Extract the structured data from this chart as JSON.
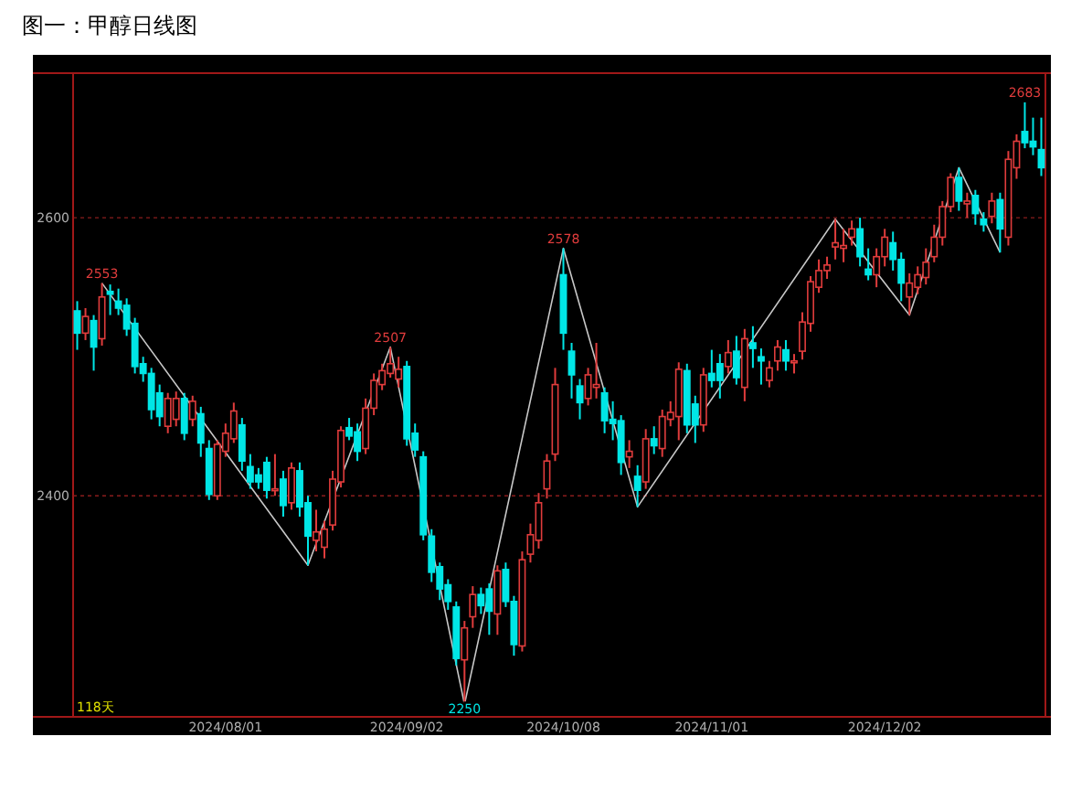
{
  "chart_data": {
    "type": "candlestick",
    "title": "图一：甲醇日线图",
    "categories": [
      null,
      null,
      null,
      null,
      null,
      null,
      null,
      null,
      null,
      null,
      null,
      null,
      null,
      null,
      null,
      null,
      null,
      null,
      "2024/08/01",
      null,
      null,
      null,
      null,
      null,
      null,
      null,
      null,
      null,
      null,
      null,
      null,
      null,
      null,
      null,
      null,
      null,
      null,
      null,
      null,
      null,
      "2024/09/02",
      null,
      null,
      null,
      null,
      null,
      null,
      null,
      null,
      null,
      null,
      null,
      null,
      null,
      null,
      null,
      null,
      null,
      null,
      "2024/10/08",
      null,
      null,
      null,
      null,
      null,
      null,
      null,
      null,
      null,
      null,
      null,
      null,
      null,
      null,
      null,
      null,
      null,
      "2024/11/01",
      null,
      null,
      null,
      null,
      null,
      null,
      null,
      null,
      null,
      null,
      null,
      null,
      null,
      null,
      null,
      null,
      null,
      null,
      null,
      null,
      "2024/12/02",
      null,
      null,
      null,
      null,
      null,
      null,
      null,
      null,
      null,
      null,
      null,
      null,
      null,
      null,
      null,
      null,
      null,
      null,
      null
    ],
    "ohlc": [
      [
        2533,
        2540,
        2505,
        2517
      ],
      [
        2517,
        2535,
        2512,
        2529
      ],
      [
        2526,
        2530,
        2490,
        2507
      ],
      [
        2513,
        2553,
        2508,
        2543
      ],
      [
        2547,
        2552,
        2530,
        2545
      ],
      [
        2540,
        2549,
        2530,
        2535
      ],
      [
        2537,
        2542,
        2515,
        2520
      ],
      [
        2524,
        2528,
        2488,
        2493
      ],
      [
        2495,
        2500,
        2482,
        2488
      ],
      [
        2488,
        2492,
        2455,
        2462
      ],
      [
        2474,
        2480,
        2450,
        2457
      ],
      [
        2450,
        2474,
        2445,
        2470
      ],
      [
        2455,
        2475,
        2450,
        2470
      ],
      [
        2470,
        2474,
        2440,
        2445
      ],
      [
        2455,
        2472,
        2450,
        2468
      ],
      [
        2459,
        2464,
        2428,
        2438
      ],
      [
        2434,
        2440,
        2397,
        2401
      ],
      [
        2400,
        2440,
        2397,
        2437
      ],
      [
        2432,
        2452,
        2428,
        2445
      ],
      [
        2441,
        2467,
        2438,
        2461
      ],
      [
        2451,
        2456,
        2418,
        2425
      ],
      [
        2421,
        2430,
        2405,
        2410
      ],
      [
        2415,
        2420,
        2405,
        2410
      ],
      [
        2424,
        2428,
        2398,
        2404
      ],
      [
        2405,
        2430,
        2400,
        2405
      ],
      [
        2412,
        2418,
        2385,
        2393
      ],
      [
        2395,
        2424,
        2390,
        2420
      ],
      [
        2418,
        2424,
        2385,
        2392
      ],
      [
        2395,
        2400,
        2350,
        2371
      ],
      [
        2368,
        2390,
        2360,
        2374
      ],
      [
        2363,
        2382,
        2355,
        2376
      ],
      [
        2379,
        2418,
        2375,
        2412
      ],
      [
        2410,
        2450,
        2406,
        2447
      ],
      [
        2449,
        2456,
        2440,
        2443
      ],
      [
        2446,
        2452,
        2425,
        2432
      ],
      [
        2434,
        2470,
        2430,
        2463
      ],
      [
        2463,
        2488,
        2458,
        2483
      ],
      [
        2480,
        2495,
        2476,
        2490
      ],
      [
        2488,
        2507,
        2485,
        2495
      ],
      [
        2484,
        2500,
        2478,
        2491
      ],
      [
        2493,
        2497,
        2436,
        2441
      ],
      [
        2445,
        2452,
        2428,
        2433
      ],
      [
        2428,
        2432,
        2368,
        2372
      ],
      [
        2371,
        2376,
        2338,
        2345
      ],
      [
        2349,
        2352,
        2325,
        2333
      ],
      [
        2336,
        2340,
        2318,
        2324
      ],
      [
        2320,
        2324,
        2278,
        2283
      ],
      [
        2282,
        2310,
        2250,
        2305
      ],
      [
        2313,
        2335,
        2305,
        2329
      ],
      [
        2329,
        2334,
        2315,
        2321
      ],
      [
        2333,
        2337,
        2300,
        2317
      ],
      [
        2315,
        2350,
        2300,
        2346
      ],
      [
        2347,
        2352,
        2320,
        2324
      ],
      [
        2324,
        2328,
        2285,
        2293
      ],
      [
        2292,
        2360,
        2288,
        2354
      ],
      [
        2358,
        2380,
        2352,
        2372
      ],
      [
        2368,
        2402,
        2362,
        2395
      ],
      [
        2405,
        2430,
        2398,
        2425
      ],
      [
        2430,
        2492,
        2425,
        2480
      ],
      [
        2559,
        2578,
        2505,
        2517
      ],
      [
        2504,
        2510,
        2470,
        2487
      ],
      [
        2479,
        2484,
        2455,
        2467
      ],
      [
        2470,
        2492,
        2465,
        2487
      ],
      [
        2478,
        2510,
        2470,
        2480
      ],
      [
        2474,
        2478,
        2445,
        2454
      ],
      [
        2455,
        2468,
        2440,
        2452
      ],
      [
        2454,
        2458,
        2415,
        2424
      ],
      [
        2428,
        2440,
        2420,
        2432
      ],
      [
        2414,
        2422,
        2392,
        2404
      ],
      [
        2410,
        2448,
        2405,
        2441
      ],
      [
        2441,
        2450,
        2430,
        2436
      ],
      [
        2434,
        2462,
        2428,
        2457
      ],
      [
        2455,
        2468,
        2450,
        2460
      ],
      [
        2457,
        2496,
        2440,
        2491
      ],
      [
        2490,
        2495,
        2445,
        2451
      ],
      [
        2466,
        2472,
        2438,
        2451
      ],
      [
        2451,
        2492,
        2446,
        2487
      ],
      [
        2488,
        2505,
        2478,
        2483
      ],
      [
        2495,
        2502,
        2470,
        2483
      ],
      [
        2493,
        2512,
        2488,
        2503
      ],
      [
        2504,
        2515,
        2480,
        2485
      ],
      [
        2478,
        2520,
        2468,
        2513
      ],
      [
        2510,
        2522,
        2492,
        2506
      ],
      [
        2500,
        2506,
        2480,
        2497
      ],
      [
        2483,
        2497,
        2478,
        2492
      ],
      [
        2497,
        2512,
        2490,
        2507
      ],
      [
        2505,
        2512,
        2490,
        2497
      ],
      [
        2496,
        2502,
        2488,
        2497
      ],
      [
        2504,
        2532,
        2498,
        2525
      ],
      [
        2524,
        2558,
        2518,
        2554
      ],
      [
        2550,
        2570,
        2546,
        2562
      ],
      [
        2562,
        2572,
        2556,
        2566
      ],
      [
        2579,
        2599,
        2570,
        2582
      ],
      [
        2578,
        2592,
        2568,
        2580
      ],
      [
        2586,
        2598,
        2580,
        2592
      ],
      [
        2592,
        2600,
        2565,
        2572
      ],
      [
        2563,
        2578,
        2555,
        2559
      ],
      [
        2559,
        2578,
        2550,
        2572
      ],
      [
        2572,
        2592,
        2565,
        2586
      ],
      [
        2582,
        2590,
        2562,
        2570
      ],
      [
        2570,
        2575,
        2540,
        2553
      ],
      [
        2543,
        2560,
        2530,
        2553
      ],
      [
        2550,
        2565,
        2545,
        2559
      ],
      [
        2557,
        2578,
        2552,
        2568
      ],
      [
        2572,
        2595,
        2568,
        2586
      ],
      [
        2586,
        2612,
        2580,
        2608
      ],
      [
        2608,
        2632,
        2604,
        2629
      ],
      [
        2629,
        2636,
        2605,
        2612
      ],
      [
        2610,
        2618,
        2600,
        2612
      ],
      [
        2616,
        2620,
        2595,
        2603
      ],
      [
        2599,
        2604,
        2590,
        2595
      ],
      [
        2601,
        2618,
        2596,
        2612
      ],
      [
        2613,
        2618,
        2575,
        2592
      ],
      [
        2586,
        2648,
        2580,
        2642
      ],
      [
        2636,
        2660,
        2628,
        2655
      ],
      [
        2662,
        2683,
        2650,
        2654
      ],
      [
        2655,
        2672,
        2645,
        2651
      ],
      [
        2649,
        2672,
        2630,
        2636
      ]
    ],
    "value_labels": [
      null,
      null,
      null,
      "2553",
      null,
      null,
      null,
      null,
      null,
      null,
      null,
      null,
      null,
      null,
      null,
      null,
      null,
      null,
      null,
      null,
      null,
      null,
      null,
      null,
      null,
      null,
      null,
      null,
      null,
      null,
      null,
      null,
      null,
      null,
      null,
      null,
      null,
      null,
      "2507",
      null,
      null,
      null,
      null,
      null,
      null,
      null,
      null,
      "2250",
      null,
      null,
      null,
      null,
      null,
      null,
      null,
      null,
      null,
      null,
      null,
      "2578",
      null,
      null,
      null,
      null,
      null,
      null,
      null,
      null,
      null,
      null,
      null,
      null,
      null,
      null,
      null,
      null,
      null,
      null,
      null,
      null,
      null,
      null,
      null,
      null,
      null,
      null,
      null,
      null,
      null,
      null,
      null,
      null,
      null,
      null,
      null,
      null,
      null,
      null,
      null,
      null,
      null,
      null,
      null,
      null,
      null,
      null,
      null,
      null,
      null,
      null,
      null,
      null,
      null,
      null,
      null,
      "2683",
      null,
      null
    ],
    "series": [
      {
        "type": "line",
        "color": "#c8c8c8",
        "values": [
          null,
          null,
          null,
          2553,
          null,
          null,
          null,
          null,
          null,
          null,
          null,
          null,
          null,
          null,
          null,
          null,
          null,
          null,
          null,
          null,
          null,
          null,
          null,
          null,
          null,
          null,
          null,
          null,
          2350,
          null,
          null,
          null,
          null,
          null,
          null,
          null,
          null,
          null,
          2507,
          null,
          null,
          null,
          null,
          null,
          null,
          null,
          null,
          2250,
          null,
          null,
          null,
          null,
          null,
          null,
          null,
          null,
          null,
          null,
          null,
          2578,
          null,
          null,
          null,
          null,
          null,
          null,
          null,
          null,
          2392,
          null,
          null,
          null,
          null,
          null,
          null,
          null,
          null,
          null,
          null,
          null,
          null,
          null,
          null,
          null,
          null,
          null,
          null,
          null,
          null,
          null,
          null,
          null,
          2599,
          null,
          null,
          null,
          null,
          null,
          null,
          null,
          null,
          2530,
          null,
          null,
          null,
          null,
          null,
          2636,
          null,
          null,
          null,
          null,
          2575,
          null,
          null,
          null,
          null,
          null
        ]
      }
    ],
    "ylim": [
      2241,
      2704
    ],
    "yticks": [
      2400,
      2600
    ],
    "grid": "y",
    "annotations": [
      "118天"
    ]
  }
}
